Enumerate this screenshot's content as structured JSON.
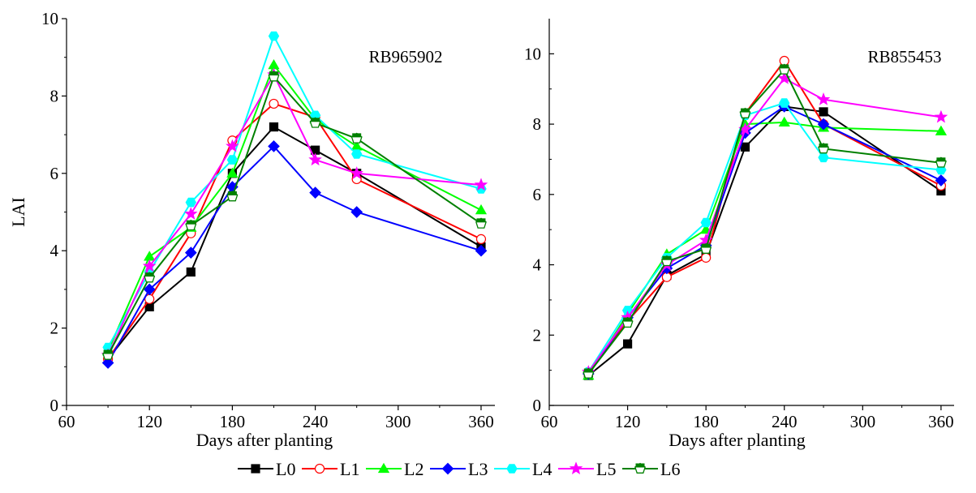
{
  "legend": [
    {
      "name": "L0",
      "color": "#000000",
      "marker": "square",
      "fill": "filled"
    },
    {
      "name": "L1",
      "color": "#ff0000",
      "marker": "circle",
      "fill": "open"
    },
    {
      "name": "L2",
      "color": "#00ff00",
      "marker": "triangle",
      "fill": "filled"
    },
    {
      "name": "L3",
      "color": "#0000ff",
      "marker": "diamond",
      "fill": "filled"
    },
    {
      "name": "L4",
      "color": "#00ffff",
      "marker": "hexagon",
      "fill": "filled"
    },
    {
      "name": "L5",
      "color": "#ff00ff",
      "marker": "star",
      "fill": "filled"
    },
    {
      "name": "L6",
      "color": "#008000",
      "marker": "pentagon",
      "fill": "half"
    }
  ],
  "chart_data": [
    {
      "type": "line",
      "title": "RB965902",
      "xlabel": "Days after planting",
      "ylabel": "LAI",
      "xlim": [
        60,
        370
      ],
      "ylim": [
        0,
        10
      ],
      "xticks": [
        60,
        120,
        180,
        240,
        300,
        360
      ],
      "yticks": [
        0,
        2,
        4,
        6,
        8,
        10
      ],
      "grid": false,
      "x": [
        90,
        120,
        150,
        180,
        210,
        240,
        270,
        360
      ],
      "series": [
        {
          "name": "L0",
          "values": [
            1.2,
            2.55,
            3.45,
            6.0,
            7.2,
            6.6,
            6.0,
            4.1
          ]
        },
        {
          "name": "L1",
          "values": [
            1.2,
            2.75,
            4.45,
            6.85,
            7.8,
            7.45,
            5.85,
            4.3
          ]
        },
        {
          "name": "L2",
          "values": [
            1.4,
            3.85,
            4.6,
            6.0,
            8.8,
            7.4,
            6.7,
            5.05
          ]
        },
        {
          "name": "L3",
          "values": [
            1.1,
            3.0,
            3.95,
            5.65,
            6.7,
            5.5,
            5.0,
            4.0
          ]
        },
        {
          "name": "L4",
          "values": [
            1.5,
            3.45,
            5.25,
            6.35,
            9.55,
            7.5,
            6.5,
            5.6
          ]
        },
        {
          "name": "L5",
          "values": [
            1.3,
            3.6,
            4.95,
            6.7,
            8.55,
            6.35,
            6.0,
            5.7
          ]
        },
        {
          "name": "L6",
          "values": [
            1.3,
            3.3,
            4.65,
            5.4,
            8.5,
            7.3,
            6.9,
            4.7
          ]
        }
      ]
    },
    {
      "type": "line",
      "title": "RB855453",
      "xlabel": "Days after planting",
      "ylabel": "",
      "xlim": [
        60,
        370
      ],
      "ylim": [
        0,
        11
      ],
      "xticks": [
        60,
        120,
        180,
        240,
        300,
        360
      ],
      "yticks": [
        0,
        2,
        4,
        6,
        8,
        10
      ],
      "grid": false,
      "x": [
        90,
        120,
        150,
        180,
        210,
        240,
        270,
        360
      ],
      "series": [
        {
          "name": "L0",
          "values": [
            0.85,
            1.75,
            3.7,
            4.3,
            7.35,
            8.5,
            8.35,
            6.1
          ]
        },
        {
          "name": "L1",
          "values": [
            0.9,
            2.4,
            3.65,
            4.2,
            8.3,
            9.8,
            8.0,
            6.25
          ]
        },
        {
          "name": "L2",
          "values": [
            0.85,
            2.6,
            4.3,
            5.0,
            8.0,
            8.05,
            7.9,
            7.8
          ]
        },
        {
          "name": "L3",
          "values": [
            0.9,
            2.5,
            3.9,
            4.55,
            7.75,
            8.5,
            8.0,
            6.4
          ]
        },
        {
          "name": "L4",
          "values": [
            0.95,
            2.7,
            4.2,
            5.2,
            8.25,
            8.6,
            7.05,
            6.7
          ]
        },
        {
          "name": "L5",
          "values": [
            0.95,
            2.5,
            4.0,
            4.7,
            7.85,
            9.3,
            8.7,
            8.2
          ]
        },
        {
          "name": "L6",
          "values": [
            0.9,
            2.35,
            4.1,
            4.45,
            8.3,
            9.55,
            7.3,
            6.9
          ]
        }
      ]
    }
  ]
}
